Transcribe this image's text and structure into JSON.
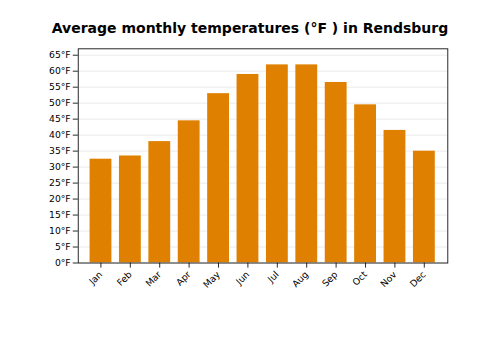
{
  "chart_data": {
    "type": "bar",
    "title": "Average monthly temperatures (°F ) in Rendsburg",
    "categories": [
      "Jan",
      "Feb",
      "Mar",
      "Apr",
      "May",
      "Jun",
      "Jul",
      "Aug",
      "Sep",
      "Oct",
      "Nov",
      "Dec"
    ],
    "values": [
      32.5,
      33.5,
      38.0,
      44.5,
      53.0,
      59.0,
      62.0,
      62.0,
      56.5,
      49.5,
      41.5,
      35.0
    ],
    "color": "#E08000",
    "ylim": [
      0,
      67
    ],
    "yticks": [
      {
        "value": 0,
        "label": "0°F"
      },
      {
        "value": 5,
        "label": "5°F"
      },
      {
        "value": 10,
        "label": "10°F"
      },
      {
        "value": 15,
        "label": "15°F"
      },
      {
        "value": 20,
        "label": "20°F"
      },
      {
        "value": 25,
        "label": "25°F"
      },
      {
        "value": 30,
        "label": "30°F"
      },
      {
        "value": 35,
        "label": "35°F"
      },
      {
        "value": 40,
        "label": "40°F"
      },
      {
        "value": 45,
        "label": "45°F"
      },
      {
        "value": 50,
        "label": "50°F"
      },
      {
        "value": 55,
        "label": "55°F"
      },
      {
        "value": 60,
        "label": "60°F"
      },
      {
        "value": 65,
        "label": "65°F"
      }
    ],
    "grid": true
  }
}
